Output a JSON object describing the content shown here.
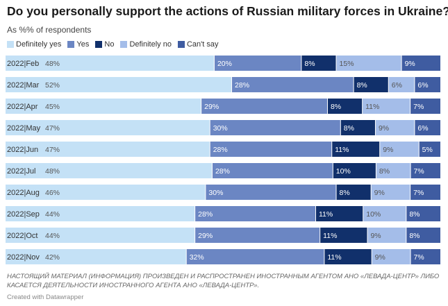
{
  "chart_data": {
    "type": "bar",
    "orientation": "horizontal",
    "stacked": true,
    "normalized": true,
    "title": "Do you personally support the actions of Russian military forces in Ukraine?",
    "subtitle": "As %% of respondents",
    "legend_position": "top-left",
    "categories": [
      "2022|Feb",
      "2022|Mar",
      "2022|Apr",
      "2022|May",
      "2022|Jun",
      "2022|Jul",
      "2022|Aug",
      "2022|Sep",
      "2022|Oct",
      "2022|Nov"
    ],
    "series": [
      {
        "name": "Definitely yes",
        "color": "#c4e1f6",
        "label_color": "#555555",
        "values": [
          48,
          52,
          45,
          47,
          47,
          48,
          46,
          44,
          44,
          42
        ]
      },
      {
        "name": "Yes",
        "color": "#6b86c3",
        "label_color": "#ffffff",
        "values": [
          20,
          28,
          29,
          30,
          28,
          28,
          30,
          28,
          29,
          32
        ]
      },
      {
        "name": "No",
        "color": "#11306b",
        "label_color": "#ffffff",
        "values": [
          8,
          8,
          8,
          8,
          11,
          10,
          8,
          11,
          11,
          11
        ]
      },
      {
        "name": "Definitely no",
        "color": "#a4bde9",
        "label_color": "#555555",
        "values": [
          15,
          6,
          11,
          9,
          9,
          8,
          9,
          10,
          9,
          9
        ]
      },
      {
        "name": "Can't say",
        "color": "#3f5ca1",
        "label_color": "#ffffff",
        "values": [
          9,
          6,
          7,
          6,
          5,
          7,
          7,
          8,
          8,
          7
        ]
      }
    ],
    "value_suffix": "%"
  },
  "note": "НАСТОЯЩИЙ МАТЕРИАЛ (ИНФОРМАЦИЯ) ПРОИЗВЕДЕН И РАСПРОСТРАНЕН ИНОСТРАННЫМ АГЕНТОМ АНО «ЛЕВАДА-ЦЕНТР» ЛИБО КАСАЕТСЯ ДЕЯТЕЛЬНОСТИ ИНОСТРАННОГО АГЕНТА АНО «ЛЕВАДА-ЦЕНТР».",
  "credit": "Created with Datawrapper"
}
